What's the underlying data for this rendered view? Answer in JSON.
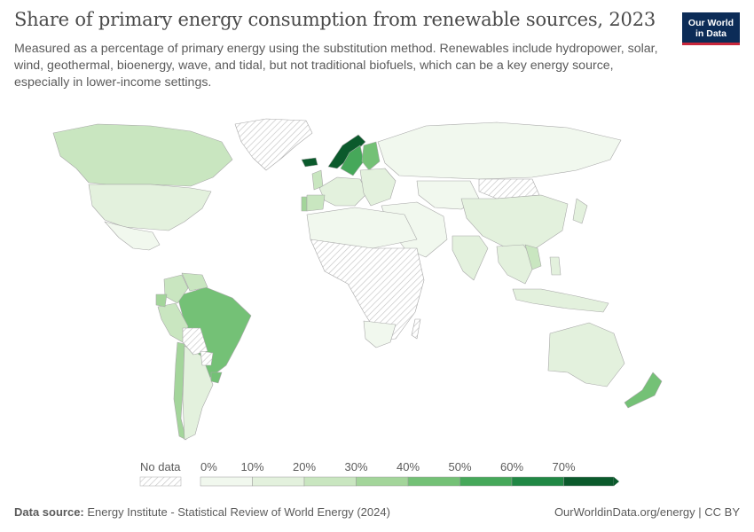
{
  "header": {
    "title": "Share of primary energy consumption from renewable sources, 2023",
    "subtitle": "Measured as a percentage of primary energy using the substitution method. Renewables include hydropower, solar, wind, geothermal, bioenergy, wave, and tidal, but not traditional biofuels, which can be a key energy source, especially in lower-income settings.",
    "logo_line1": "Our World",
    "logo_line2": "in Data"
  },
  "legend": {
    "no_data_label": "No data",
    "bins": [
      "0%",
      "10%",
      "20%",
      "30%",
      "40%",
      "50%",
      "60%",
      "70%"
    ],
    "colors": [
      "#f1f8ee",
      "#e3f1dd",
      "#c9e6c0",
      "#a3d59a",
      "#74c176",
      "#46a85a",
      "#218845",
      "#0b5a2c"
    ]
  },
  "footer": {
    "source_label": "Data source:",
    "source_text": "Energy Institute - Statistical Review of World Energy (2024)",
    "site": "OurWorldinData.org/energy | CC BY"
  },
  "map_data": {
    "type": "choropleth",
    "year": 2023,
    "unit": "%",
    "no_data_color": "#dddddd",
    "regions": [
      {
        "region": "Canada",
        "value": 28
      },
      {
        "region": "United States",
        "value": 10
      },
      {
        "region": "Mexico",
        "value": 8
      },
      {
        "region": "Greenland",
        "value": null
      },
      {
        "region": "Brazil",
        "value": 49
      },
      {
        "region": "Colombia",
        "value": 28
      },
      {
        "region": "Venezuela",
        "value": 25
      },
      {
        "region": "Peru",
        "value": 24
      },
      {
        "region": "Ecuador",
        "value": 30
      },
      {
        "region": "Chile",
        "value": 35
      },
      {
        "region": "Argentina",
        "value": 12
      },
      {
        "region": "Bolivia",
        "value": null
      },
      {
        "region": "Paraguay",
        "value": null
      },
      {
        "region": "Uruguay",
        "value": 47
      },
      {
        "region": "Norway",
        "value": 72
      },
      {
        "region": "Sweden",
        "value": 58
      },
      {
        "region": "Finland",
        "value": 40
      },
      {
        "region": "Iceland",
        "value": 80
      },
      {
        "region": "United Kingdom",
        "value": 20
      },
      {
        "region": "Western Europe",
        "value": 18
      },
      {
        "region": "Portugal",
        "value": 33
      },
      {
        "region": "Spain",
        "value": 25
      },
      {
        "region": "Eastern Europe",
        "value": 10
      },
      {
        "region": "Russia",
        "value": 7
      },
      {
        "region": "Middle East",
        "value": 2
      },
      {
        "region": "Central Asia",
        "value": 4
      },
      {
        "region": "Mongolia",
        "value": null
      },
      {
        "region": "China",
        "value": 16
      },
      {
        "region": "India",
        "value": 10
      },
      {
        "region": "Southeast Asia",
        "value": 14
      },
      {
        "region": "Vietnam",
        "value": 26
      },
      {
        "region": "Japan",
        "value": 12
      },
      {
        "region": "North Africa",
        "value": 5
      },
      {
        "region": "Sub-Saharan Africa",
        "value": null
      },
      {
        "region": "South Africa",
        "value": 8
      },
      {
        "region": "Madagascar",
        "value": null
      },
      {
        "region": "Indonesia",
        "value": 10
      },
      {
        "region": "Philippines",
        "value": 12
      },
      {
        "region": "Australia",
        "value": 12
      },
      {
        "region": "New Zealand",
        "value": 40
      }
    ]
  }
}
